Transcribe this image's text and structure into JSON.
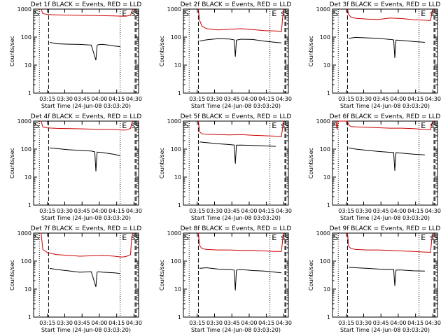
{
  "figure": {
    "ylabel": "Counts/sec",
    "xlabel": "Start Time (24-Jun-08 03:03:20)",
    "x_ticks": [
      "03:15",
      "03:30",
      "03:45",
      "04:00",
      "04:15",
      "04:30"
    ],
    "y_ticks": [
      "1",
      "10",
      "100",
      "1000"
    ],
    "colors": {
      "events": "#000000",
      "lld": "#cc0000",
      "axes": "#000000"
    }
  },
  "chart_data": [
    {
      "type": "line",
      "title": "Det 1f BLACK = Events, RED = LLD",
      "xlabel": "Start Time (24-Jun-08 03:03:20)",
      "ylabel": "Counts/sec",
      "ylim": [
        1,
        1000
      ],
      "ylog": true,
      "x_range_min": [
        0,
        91
      ],
      "markers": {
        "S": 0,
        "E": 79,
        "SS": 87
      },
      "vlines": {
        "dotted": [
          5,
          75
        ],
        "dashed": [
          13,
          88
        ]
      },
      "series": [
        {
          "name": "Events",
          "x": [
            14,
            20,
            30,
            40,
            50,
            54,
            55,
            56,
            60,
            65,
            70,
            75
          ],
          "values": [
            65,
            58,
            56,
            55,
            52,
            15,
            50,
            54,
            55,
            52,
            48,
            46
          ]
        },
        {
          "name": "LLD",
          "x": [
            6,
            6.5,
            8,
            12,
            20,
            40,
            55,
            70,
            76,
            80,
            84,
            85,
            86
          ],
          "values": [
            1000,
            1000,
            700,
            640,
            620,
            600,
            590,
            570,
            560,
            560,
            600,
            800,
            1000
          ]
        }
      ]
    },
    {
      "type": "line",
      "title": "Det 2f BLACK = Events, RED = LLD",
      "xlabel": "Start Time (24-Jun-08 03:03:20)",
      "ylabel": "Counts/sec",
      "ylim": [
        1,
        1000
      ],
      "ylog": true,
      "x_range_min": [
        0,
        91
      ],
      "markers": {
        "S": 0,
        "E": 79,
        "SS": 87
      },
      "vlines": {
        "dotted": [
          5,
          75
        ],
        "dashed": [
          13,
          88
        ]
      },
      "series": [
        {
          "name": "Events",
          "x": [
            14,
            20,
            30,
            40,
            44,
            45,
            46,
            50,
            60,
            70,
            80,
            85
          ],
          "values": [
            72,
            80,
            88,
            85,
            80,
            20,
            78,
            84,
            82,
            72,
            65,
            62
          ]
        },
        {
          "name": "LLD",
          "x": [
            13,
            14,
            16,
            20,
            30,
            40,
            50,
            60,
            70,
            80,
            85,
            86,
            87
          ],
          "values": [
            1000,
            400,
            250,
            200,
            180,
            190,
            200,
            185,
            170,
            165,
            160,
            500,
            1000
          ]
        }
      ]
    },
    {
      "type": "line",
      "title": "Det 3f BLACK = Events, RED = LLD",
      "xlabel": "Start Time (24-Jun-08 03:03:20)",
      "ylabel": "Counts/sec",
      "ylim": [
        1,
        1000
      ],
      "ylog": true,
      "x_range_min": [
        0,
        91
      ],
      "markers": {
        "S": 0,
        "E": 79,
        "SS": 87
      },
      "vlines": {
        "dotted": [
          5,
          75
        ],
        "dashed": [
          13,
          88
        ]
      },
      "series": [
        {
          "name": "Events",
          "x": [
            14,
            20,
            30,
            40,
            53,
            54,
            55,
            60,
            70,
            80
          ],
          "values": [
            90,
            98,
            94,
            90,
            80,
            18,
            78,
            76,
            70,
            65
          ]
        },
        {
          "name": "LLD",
          "x": [
            13,
            14,
            16,
            20,
            30,
            40,
            50,
            60,
            70,
            80,
            85,
            86,
            87
          ],
          "values": [
            1000,
            640,
            520,
            470,
            440,
            430,
            480,
            460,
            420,
            400,
            390,
            700,
            1000
          ]
        }
      ]
    },
    {
      "type": "line",
      "title": "Det 4f BLACK = Events, RED = LLD",
      "xlabel": "Start Time (24-Jun-08 03:03:20)",
      "ylabel": "Counts/sec",
      "ylim": [
        1,
        1000
      ],
      "ylog": true,
      "x_range_min": [
        0,
        91
      ],
      "markers": {
        "S": 0,
        "E": 79,
        "SS": 87
      },
      "vlines": {
        "dotted": [
          5,
          75
        ],
        "dashed": [
          13,
          88
        ]
      },
      "series": [
        {
          "name": "Events",
          "x": [
            14,
            20,
            30,
            40,
            50,
            53,
            54,
            55,
            60,
            70,
            75
          ],
          "values": [
            110,
            105,
            95,
            90,
            85,
            80,
            16,
            78,
            75,
            65,
            58
          ]
        },
        {
          "name": "LLD",
          "x": [
            6,
            6.5,
            8,
            12,
            20,
            40,
            55,
            70,
            76,
            80,
            84,
            85,
            86
          ],
          "values": [
            1000,
            1000,
            620,
            570,
            550,
            530,
            510,
            500,
            480,
            480,
            550,
            800,
            1000
          ]
        }
      ]
    },
    {
      "type": "line",
      "title": "Det 5f BLACK = Events, RED = LLD",
      "xlabel": "Start Time (24-Jun-08 03:03:20)",
      "ylabel": "Counts/sec",
      "ylim": [
        1,
        1000
      ],
      "ylog": true,
      "x_range_min": [
        0,
        91
      ],
      "markers": {
        "S": 0,
        "E": 79,
        "SS": 87
      },
      "vlines": {
        "dotted": [
          5,
          75
        ],
        "dashed": [
          13,
          88
        ]
      },
      "series": [
        {
          "name": "Events",
          "x": [
            14,
            20,
            30,
            40,
            44,
            45,
            46,
            50,
            60,
            70,
            80
          ],
          "values": [
            180,
            170,
            155,
            145,
            140,
            30,
            138,
            140,
            135,
            130,
            125
          ]
        },
        {
          "name": "LLD",
          "x": [
            13,
            14,
            16,
            20,
            30,
            40,
            50,
            60,
            70,
            80,
            85,
            86,
            87
          ],
          "values": [
            1000,
            420,
            350,
            340,
            330,
            320,
            330,
            310,
            300,
            290,
            280,
            600,
            1000
          ]
        }
      ]
    },
    {
      "type": "line",
      "title": "Det 6f BLACK = Events, RED = LLD",
      "xlabel": "Start Time (24-Jun-08 03:03:20)",
      "ylabel": "Counts/sec",
      "ylim": [
        1,
        1000
      ],
      "ylog": true,
      "x_range_min": [
        0,
        91
      ],
      "markers": {
        "S": 0,
        "E": 79,
        "SS": 87
      },
      "vlines": {
        "dotted": [
          5,
          75
        ],
        "dashed": [
          13,
          88
        ]
      },
      "series": [
        {
          "name": "Events",
          "x": [
            14,
            20,
            30,
            40,
            53,
            54,
            55,
            60,
            70,
            80
          ],
          "values": [
            110,
            100,
            90,
            82,
            75,
            17,
            74,
            72,
            66,
            62
          ]
        },
        {
          "name": "LLD",
          "x": [
            3,
            4,
            5,
            6,
            13,
            14,
            16,
            20,
            30,
            40,
            50,
            60,
            70,
            80,
            85,
            86,
            87
          ],
          "values": [
            1000,
            500,
            1000,
            1000,
            1000,
            720,
            640,
            620,
            600,
            580,
            560,
            560,
            540,
            500,
            490,
            800,
            1000
          ]
        }
      ]
    },
    {
      "type": "line",
      "title": "Det 7f BLACK = Events, RED = LLD",
      "xlabel": "Start Time (24-Jun-08 03:03:20)",
      "ylabel": "Counts/sec",
      "ylim": [
        1,
        1000
      ],
      "ylog": true,
      "x_range_min": [
        0,
        91
      ],
      "markers": {
        "S": 0,
        "E": 79,
        "SS": 87
      },
      "vlines": {
        "dotted": [
          5,
          75
        ],
        "dashed": [
          13,
          88
        ]
      },
      "series": [
        {
          "name": "Events",
          "x": [
            14,
            20,
            30,
            40,
            50,
            54,
            55,
            56,
            60,
            70,
            75
          ],
          "values": [
            55,
            50,
            45,
            40,
            42,
            12,
            40,
            42,
            40,
            38,
            36
          ]
        },
        {
          "name": "LLD",
          "x": [
            6,
            6.5,
            8,
            12,
            20,
            30,
            40,
            50,
            60,
            70,
            76,
            80,
            84,
            85,
            86
          ],
          "values": [
            1000,
            1000,
            260,
            200,
            170,
            160,
            150,
            155,
            160,
            150,
            140,
            145,
            170,
            700,
            1000
          ]
        }
      ]
    },
    {
      "type": "line",
      "title": "Det 8f BLACK = Events, RED = LLD",
      "xlabel": "Start Time (24-Jun-08 03:03:20)",
      "ylabel": "Counts/sec",
      "ylim": [
        1,
        1000
      ],
      "ylog": true,
      "x_range_min": [
        0,
        91
      ],
      "markers": {
        "S": 0,
        "E": 79,
        "SS": 87
      },
      "vlines": {
        "dotted": [
          5,
          75
        ],
        "dashed": [
          13,
          88
        ]
      },
      "series": [
        {
          "name": "Events",
          "x": [
            14,
            20,
            30,
            40,
            44,
            45,
            46,
            50,
            60,
            70,
            80,
            85
          ],
          "values": [
            55,
            58,
            52,
            50,
            48,
            9,
            48,
            50,
            46,
            44,
            40,
            38
          ]
        },
        {
          "name": "LLD",
          "x": [
            13,
            14,
            16,
            20,
            30,
            40,
            50,
            60,
            70,
            80,
            85,
            86,
            87
          ],
          "values": [
            1000,
            360,
            280,
            260,
            250,
            250,
            240,
            240,
            230,
            220,
            220,
            600,
            1000
          ]
        }
      ]
    },
    {
      "type": "line",
      "title": "Det 9f BLACK = Events, RED = LLD",
      "xlabel": "Start Time (24-Jun-08 03:03:20)",
      "ylabel": "Counts/sec",
      "ylim": [
        1,
        1000
      ],
      "ylog": true,
      "x_range_min": [
        0,
        91
      ],
      "markers": {
        "S": 0,
        "E": 79,
        "SS": 87
      },
      "vlines": {
        "dotted": [
          5,
          75
        ],
        "dashed": [
          13,
          88
        ]
      },
      "series": [
        {
          "name": "Events",
          "x": [
            14,
            20,
            30,
            40,
            53,
            54,
            55,
            60,
            70,
            80
          ],
          "values": [
            60,
            58,
            55,
            52,
            50,
            13,
            48,
            48,
            45,
            44
          ]
        },
        {
          "name": "LLD",
          "x": [
            13,
            14,
            16,
            20,
            30,
            40,
            50,
            60,
            70,
            80,
            85,
            86,
            87
          ],
          "values": [
            1000,
            340,
            280,
            260,
            250,
            250,
            240,
            230,
            220,
            210,
            205,
            600,
            1000
          ]
        }
      ]
    }
  ]
}
